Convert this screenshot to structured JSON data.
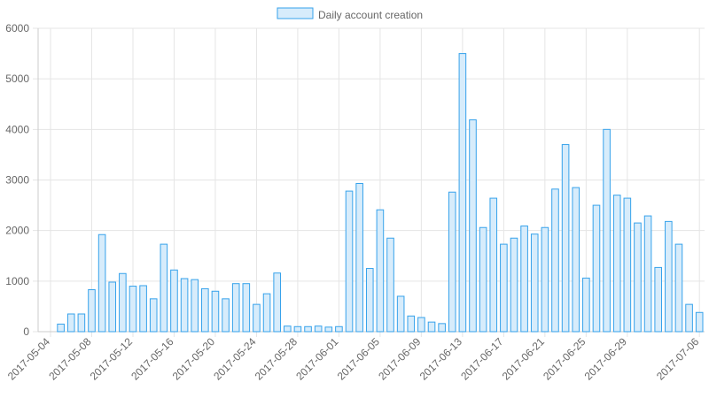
{
  "chart_data": {
    "type": "bar",
    "legend": {
      "position": "top-center",
      "label": "Daily account creation"
    },
    "series": [
      {
        "name": "Daily account creation",
        "color": "#36a2eb",
        "fill": "#d7ecfb"
      }
    ],
    "ylim": [
      0,
      6000
    ],
    "y_ticks": [
      0,
      1000,
      2000,
      3000,
      4000,
      5000,
      6000
    ],
    "grid": true,
    "x_ticks": [
      "2017-05-04",
      "2017-05-08",
      "2017-05-12",
      "2017-05-16",
      "2017-05-20",
      "2017-05-24",
      "2017-05-28",
      "2017-06-01",
      "2017-06-05",
      "2017-06-09",
      "2017-06-13",
      "2017-06-17",
      "2017-06-21",
      "2017-06-25",
      "2017-06-29",
      "2017-07-06"
    ],
    "dates": [
      "2017-05-05",
      "2017-05-06",
      "2017-05-07",
      "2017-05-08",
      "2017-05-09",
      "2017-05-10",
      "2017-05-11",
      "2017-05-12",
      "2017-05-13",
      "2017-05-14",
      "2017-05-15",
      "2017-05-16",
      "2017-05-17",
      "2017-05-18",
      "2017-05-19",
      "2017-05-20",
      "2017-05-21",
      "2017-05-22",
      "2017-05-23",
      "2017-05-24",
      "2017-05-25",
      "2017-05-26",
      "2017-05-27",
      "2017-05-28",
      "2017-05-29",
      "2017-05-30",
      "2017-05-31",
      "2017-06-01",
      "2017-06-02",
      "2017-06-03",
      "2017-06-04",
      "2017-06-05",
      "2017-06-06",
      "2017-06-07",
      "2017-06-08",
      "2017-06-09",
      "2017-06-10",
      "2017-06-11",
      "2017-06-12",
      "2017-06-13",
      "2017-06-14",
      "2017-06-15",
      "2017-06-16",
      "2017-06-17",
      "2017-06-18",
      "2017-06-19",
      "2017-06-20",
      "2017-06-21",
      "2017-06-22",
      "2017-06-23",
      "2017-06-24",
      "2017-06-25",
      "2017-06-26",
      "2017-06-27",
      "2017-06-28",
      "2017-06-29",
      "2017-06-30",
      "2017-07-01",
      "2017-07-02",
      "2017-07-03",
      "2017-07-04",
      "2017-07-05",
      "2017-07-06"
    ],
    "values": [
      150,
      350,
      350,
      830,
      1920,
      980,
      1150,
      900,
      910,
      650,
      1730,
      1220,
      1050,
      1030,
      850,
      800,
      650,
      950,
      950,
      540,
      750,
      1160,
      110,
      100,
      100,
      110,
      90,
      100,
      2780,
      2930,
      1250,
      2410,
      1850,
      700,
      310,
      280,
      190,
      160,
      2760,
      5500,
      4190,
      2060,
      2640,
      1730,
      1850,
      2090,
      1930,
      2060,
      2820,
      3700,
      2850,
      1060,
      2500,
      4000,
      2700,
      2640,
      2150,
      2290,
      1270,
      2180,
      1730,
      540,
      380
    ]
  }
}
